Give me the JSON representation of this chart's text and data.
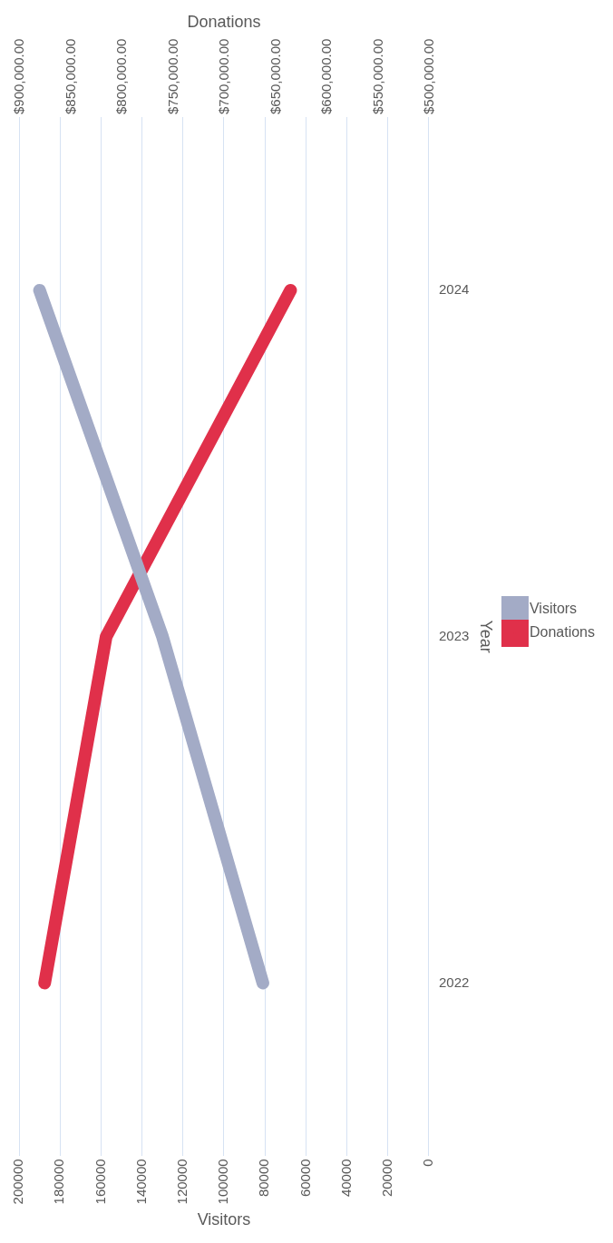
{
  "chart_data": {
    "type": "line",
    "orientation": "horizontal",
    "categories": [
      "2024",
      "2023",
      "2022"
    ],
    "xlabel": "Visitors",
    "x2label": "Donations",
    "ylabel": "Year",
    "xlim": [
      200000,
      0
    ],
    "xticks": [
      200000,
      180000,
      160000,
      140000,
      120000,
      100000,
      80000,
      60000,
      40000,
      20000,
      0
    ],
    "x2lim": [
      900000,
      500000
    ],
    "x2ticks": [
      {
        "value": 900000,
        "label": "$900,000.00"
      },
      {
        "value": 850000,
        "label": "$850,000.00"
      },
      {
        "value": 800000,
        "label": "$800,000.00"
      },
      {
        "value": 750000,
        "label": "$750,000.00"
      },
      {
        "value": 700000,
        "label": "$700,000.00"
      },
      {
        "value": 650000,
        "label": "$650,000.00"
      },
      {
        "value": 600000,
        "label": "$600,000.00"
      },
      {
        "value": 550000,
        "label": "$550,000.00"
      },
      {
        "value": 500000,
        "label": "$500,000.00"
      }
    ],
    "series": [
      {
        "name": "Visitors",
        "color": "#a3abc6",
        "values": [
          190000,
          130000,
          81000
        ]
      },
      {
        "name": "Donations",
        "color": "#e0304a",
        "axis": "x2",
        "values": [
          635000,
          815000,
          875000
        ]
      }
    ],
    "grid": "x",
    "legend": "right",
    "marker": "none",
    "line_style": "solid"
  }
}
